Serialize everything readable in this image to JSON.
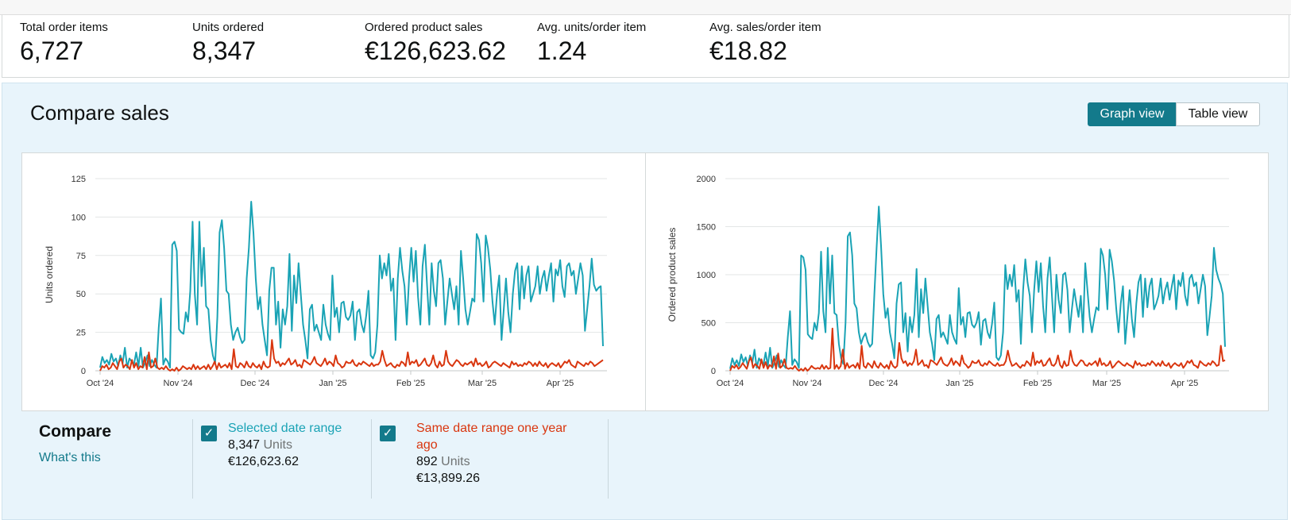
{
  "metrics": [
    {
      "label": "Total order items",
      "value": "6,727"
    },
    {
      "label": "Units ordered",
      "value": "8,347"
    },
    {
      "label": "Ordered product sales",
      "value": "€126,623.62"
    },
    {
      "label": "Avg. units/order item",
      "value": "1.24"
    },
    {
      "label": "Avg. sales/order item",
      "value": "€18.82"
    }
  ],
  "panel": {
    "title": "Compare sales",
    "view_toggle": {
      "graph_label": "Graph view",
      "table_label": "Table view",
      "selected": "Graph view"
    }
  },
  "colors": {
    "selected": "#1aa3b5",
    "previous": "#d9360f",
    "accent": "#137a8b"
  },
  "chart_data": [
    {
      "type": "line",
      "title": "",
      "xlabel": "",
      "ylabel": "Units ordered",
      "ylim": [
        0,
        125
      ],
      "yticks": [
        0,
        25,
        50,
        75,
        100,
        125
      ],
      "xticks": [
        "Oct '24",
        "Nov '24",
        "Dec '24",
        "Jan '25",
        "Feb '25",
        "Mar '25",
        "Apr '25"
      ],
      "x_start": "Oct '24",
      "grid": true,
      "series": [
        {
          "name": "Selected date range",
          "color": "#1aa3b5",
          "values": [
            2,
            9,
            5,
            7,
            4,
            11,
            6,
            8,
            3,
            10,
            5,
            15,
            2,
            8,
            6,
            4,
            12,
            3,
            15,
            2,
            5,
            10,
            3,
            7,
            4,
            2,
            28,
            47,
            4,
            8,
            6,
            2,
            82,
            84,
            78,
            27,
            25,
            24,
            38,
            32,
            52,
            97,
            50,
            30,
            97,
            55,
            80,
            42,
            40,
            20,
            10,
            5,
            35,
            90,
            98,
            80,
            52,
            50,
            30,
            20,
            25,
            28,
            22,
            18,
            20,
            60,
            80,
            110,
            90,
            60,
            40,
            48,
            30,
            20,
            10,
            52,
            67,
            67,
            30,
            45,
            15,
            40,
            30,
            42,
            76,
            26,
            62,
            44,
            70,
            50,
            30,
            20,
            8,
            40,
            43,
            26,
            30,
            25,
            20,
            43,
            30,
            24,
            20,
            62,
            35,
            41,
            25,
            44,
            45,
            35,
            33,
            36,
            45,
            20,
            38,
            40,
            30,
            25,
            36,
            52,
            10,
            8,
            12,
            30,
            75,
            60,
            70,
            62,
            76,
            52,
            60,
            20,
            60,
            80,
            65,
            55,
            30,
            60,
            80,
            58,
            78,
            48,
            30,
            68,
            82,
            55,
            30,
            70,
            52,
            42,
            70,
            72,
            60,
            30,
            45,
            60,
            50,
            40,
            55,
            30,
            78,
            60,
            40,
            30,
            38,
            47,
            45,
            89,
            85,
            70,
            45,
            88,
            80,
            66,
            45,
            30,
            50,
            62,
            20,
            40,
            60,
            38,
            25,
            50,
            65,
            70,
            40,
            68,
            47,
            62,
            68,
            45,
            50,
            55,
            68,
            50,
            60,
            65,
            52,
            62,
            70,
            45,
            66,
            62,
            72,
            55,
            48,
            68,
            70,
            62,
            65,
            50,
            60,
            70,
            62,
            26,
            40,
            55,
            73,
            56,
            52,
            54,
            55,
            16
          ]
        },
        {
          "name": "Same date range one year ago",
          "color": "#d9360f",
          "values": [
            0,
            3,
            2,
            4,
            1,
            2,
            5,
            3,
            1,
            6,
            8,
            2,
            4,
            3,
            1,
            7,
            2,
            5,
            1,
            3,
            2,
            9,
            1,
            12,
            2,
            3,
            8,
            2,
            1,
            2,
            1,
            3,
            1,
            0,
            1,
            0,
            2,
            0,
            1,
            3,
            2,
            1,
            2,
            1,
            4,
            1,
            3,
            1,
            2,
            3,
            1,
            4,
            1,
            3,
            6,
            1,
            5,
            2,
            3,
            4,
            2,
            5,
            1,
            14,
            3,
            2,
            5,
            4,
            2,
            6,
            3,
            2,
            5,
            3,
            2,
            4,
            1,
            6,
            3,
            2,
            3,
            20,
            8,
            5,
            6,
            3,
            5,
            4,
            6,
            8,
            4,
            5,
            7,
            3,
            4,
            2,
            7,
            6,
            5,
            4,
            6,
            9,
            5,
            4,
            3,
            5,
            8,
            4,
            6,
            5,
            3,
            10,
            5,
            4,
            2,
            3,
            6,
            5,
            5,
            7,
            4,
            3,
            5,
            4,
            6,
            5,
            4,
            3,
            5,
            3,
            4,
            4,
            6,
            13,
            7,
            3,
            4,
            5,
            3,
            2,
            4,
            3,
            6,
            5,
            3,
            12,
            4,
            6,
            5,
            7,
            3,
            4,
            6,
            8,
            4,
            3,
            5,
            10,
            4,
            2,
            6,
            3,
            4,
            13,
            6,
            4,
            3,
            5,
            7,
            6,
            4,
            3,
            5,
            4,
            5,
            6,
            3,
            8,
            4,
            5,
            3,
            4,
            6,
            2,
            3,
            5,
            6,
            5,
            4,
            3,
            5,
            4,
            3,
            2,
            6,
            4,
            5,
            3,
            4,
            3,
            5,
            4,
            6,
            5,
            3,
            5,
            3,
            6,
            4,
            3,
            5,
            2,
            4,
            5,
            4,
            3,
            5,
            2,
            4,
            6,
            5,
            7,
            4,
            3,
            2,
            6,
            5,
            4,
            3,
            5,
            4,
            6,
            5,
            3,
            4,
            5,
            6,
            7
          ]
        }
      ]
    },
    {
      "type": "line",
      "title": "",
      "xlabel": "",
      "ylabel": "Ordered product sales",
      "ylim": [
        0,
        2000
      ],
      "yticks": [
        0,
        500,
        1000,
        1500,
        2000
      ],
      "xticks": [
        "Oct '24",
        "Nov '24",
        "Dec '24",
        "Jan '25",
        "Feb '25",
        "Mar '25",
        "Apr '25"
      ],
      "x_start": "Oct '24",
      "grid": true,
      "series": [
        {
          "name": "Selected date range",
          "color": "#1aa3b5",
          "values": [
            20,
            130,
            60,
            110,
            50,
            170,
            90,
            140,
            50,
            160,
            80,
            220,
            30,
            130,
            90,
            60,
            190,
            50,
            240,
            30,
            80,
            160,
            40,
            110,
            60,
            30,
            350,
            620,
            60,
            120,
            90,
            30,
            1200,
            1180,
            1050,
            380,
            350,
            330,
            500,
            420,
            600,
            1240,
            620,
            400,
            1280,
            700,
            1200,
            600,
            580,
            280,
            130,
            70,
            500,
            1400,
            1440,
            1200,
            700,
            650,
            400,
            280,
            350,
            390,
            300,
            250,
            280,
            800,
            1280,
            1710,
            1300,
            800,
            550,
            650,
            400,
            280,
            130,
            700,
            900,
            920,
            400,
            600,
            200,
            560,
            400,
            580,
            1060,
            350,
            850,
            600,
            960,
            680,
            400,
            280,
            110,
            540,
            580,
            350,
            400,
            340,
            280,
            580,
            400,
            330,
            280,
            860,
            480,
            560,
            350,
            600,
            610,
            480,
            450,
            500,
            610,
            270,
            520,
            540,
            400,
            340,
            490,
            710,
            140,
            110,
            160,
            400,
            1100,
            850,
            1000,
            880,
            1100,
            720,
            840,
            280,
            840,
            1160,
            920,
            780,
            400,
            840,
            1140,
            820,
            1120,
            680,
            400,
            960,
            1180,
            780,
            400,
            1000,
            740,
            600,
            1000,
            1020,
            840,
            400,
            640,
            850,
            700,
            560,
            780,
            400,
            1120,
            840,
            560,
            400,
            540,
            660,
            630,
            1270,
            1200,
            1000,
            640,
            1260,
            1140,
            940,
            640,
            400,
            700,
            880,
            280,
            560,
            840,
            540,
            350,
            700,
            920,
            1000,
            560,
            960,
            660,
            880,
            960,
            640,
            700,
            780,
            960,
            700,
            840,
            920,
            740,
            880,
            1000,
            640,
            940,
            880,
            1020,
            780,
            680,
            960,
            1000,
            880,
            920,
            700,
            850,
            1000,
            880,
            370,
            560,
            780,
            1280,
            1050,
            960,
            900,
            800,
            250
          ]
        },
        {
          "name": "Same date range one year ago",
          "color": "#d9360f",
          "values": [
            0,
            50,
            30,
            60,
            20,
            40,
            80,
            50,
            20,
            100,
            140,
            30,
            70,
            50,
            20,
            120,
            30,
            90,
            20,
            60,
            40,
            150,
            20,
            180,
            30,
            50,
            120,
            30,
            20,
            30,
            20,
            50,
            20,
            0,
            20,
            0,
            30,
            0,
            20,
            50,
            30,
            20,
            30,
            20,
            60,
            20,
            50,
            20,
            30,
            440,
            20,
            60,
            20,
            50,
            220,
            20,
            80,
            30,
            50,
            60,
            30,
            80,
            20,
            260,
            50,
            30,
            80,
            60,
            30,
            100,
            50,
            30,
            80,
            50,
            30,
            60,
            20,
            100,
            50,
            30,
            50,
            290,
            130,
            80,
            100,
            50,
            80,
            60,
            100,
            220,
            60,
            80,
            110,
            50,
            60,
            30,
            110,
            100,
            80,
            60,
            100,
            140,
            80,
            60,
            50,
            80,
            130,
            60,
            100,
            80,
            50,
            160,
            80,
            60,
            30,
            50,
            100,
            80,
            80,
            110,
            60,
            50,
            80,
            60,
            100,
            80,
            60,
            50,
            80,
            50,
            60,
            60,
            100,
            210,
            110,
            50,
            60,
            80,
            50,
            30,
            60,
            50,
            100,
            80,
            50,
            190,
            60,
            100,
            80,
            110,
            50,
            60,
            100,
            130,
            60,
            50,
            80,
            160,
            60,
            30,
            100,
            50,
            60,
            210,
            100,
            60,
            50,
            80,
            110,
            100,
            60,
            50,
            80,
            60,
            80,
            100,
            50,
            130,
            60,
            80,
            50,
            60,
            100,
            30,
            50,
            80,
            100,
            80,
            60,
            50,
            80,
            60,
            50,
            30,
            100,
            60,
            80,
            50,
            60,
            50,
            80,
            60,
            100,
            80,
            50,
            80,
            50,
            100,
            60,
            50,
            80,
            30,
            60,
            80,
            60,
            50,
            80,
            30,
            60,
            100,
            80,
            110,
            60,
            50,
            30,
            100,
            80,
            60,
            50,
            80,
            60,
            100,
            80,
            50,
            60,
            260,
            100,
            110
          ]
        }
      ]
    }
  ],
  "compare": {
    "title": "Compare",
    "whats_this": "What's this",
    "items": [
      {
        "label": "Selected date range",
        "units_value": "8,347",
        "units_word": "Units",
        "sales": "€126,623.62",
        "checked": true
      },
      {
        "label": "Same date range one year ago",
        "units_value": "892",
        "units_word": "Units",
        "sales": "€13,899.26",
        "checked": true
      }
    ]
  }
}
